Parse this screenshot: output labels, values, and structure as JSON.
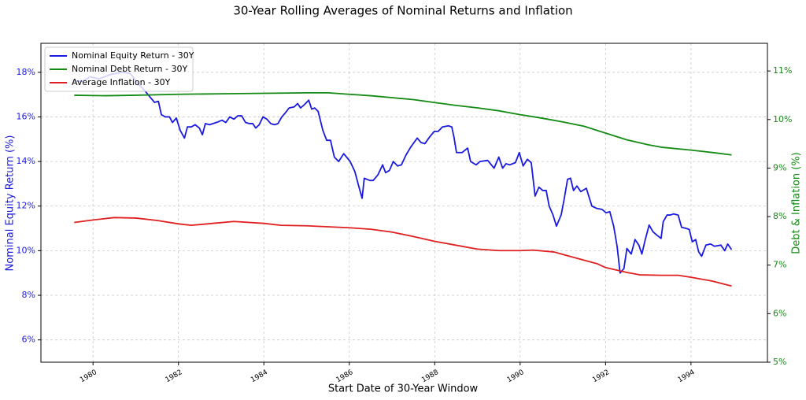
{
  "chart_data": {
    "type": "line",
    "title": "30-Year Rolling Averages of Nominal Returns and Inflation",
    "xlabel": "Start Date of 30-Year Window",
    "ylabel": "Nominal Equity Return (%)",
    "y2label": "Debt & Inflation (%)",
    "xlim": [
      1978.78,
      1995.79
    ],
    "xticks": [
      1980,
      1982,
      1984,
      1986,
      1988,
      1990,
      1992,
      1994
    ],
    "ylim": [
      5,
      19.3
    ],
    "yticks": [
      {
        "value": 6,
        "label": "6%"
      },
      {
        "value": 8,
        "label": "8%"
      },
      {
        "value": 10,
        "label": "10%"
      },
      {
        "value": 12,
        "label": "12%"
      },
      {
        "value": 14,
        "label": "14%"
      },
      {
        "value": 16,
        "label": "16%"
      },
      {
        "value": 18,
        "label": "18%"
      }
    ],
    "y2lim": [
      5,
      11.57
    ],
    "y2ticks": [
      {
        "value": 5,
        "label": "5%"
      },
      {
        "value": 6,
        "label": "6%"
      },
      {
        "value": 7,
        "label": "7%"
      },
      {
        "value": 8,
        "label": "8%"
      },
      {
        "value": 9,
        "label": "9%"
      },
      {
        "value": 10,
        "label": "10%"
      },
      {
        "value": 11,
        "label": "11%"
      }
    ],
    "grid": true,
    "legend": "upper left",
    "series": [
      {
        "name": "Nominal Equity Return - 30Y",
        "color": "#1a1ae0",
        "axis": "y",
        "x": [
          1979.56,
          1979.76,
          1979.94,
          1980.13,
          1980.41,
          1980.68,
          1980.87,
          1981.05,
          1981.2,
          1981.33,
          1981.44,
          1981.53,
          1981.6,
          1981.69,
          1981.79,
          1981.86,
          1981.95,
          1982.04,
          1982.14,
          1982.21,
          1982.3,
          1982.39,
          1982.49,
          1982.56,
          1982.63,
          1982.73,
          1982.89,
          1983.02,
          1983.11,
          1983.2,
          1983.3,
          1983.39,
          1983.48,
          1983.57,
          1983.66,
          1983.74,
          1983.81,
          1983.89,
          1983.98,
          1984.07,
          1984.16,
          1984.25,
          1984.33,
          1984.42,
          1984.51,
          1984.59,
          1984.71,
          1984.79,
          1984.86,
          1984.95,
          1985.05,
          1985.12,
          1985.19,
          1985.27,
          1985.38,
          1985.47,
          1985.56,
          1985.65,
          1985.75,
          1985.87,
          1986.02,
          1986.13,
          1986.22,
          1986.3,
          1986.35,
          1986.48,
          1986.56,
          1986.67,
          1986.78,
          1986.85,
          1986.94,
          1987.03,
          1987.13,
          1987.22,
          1987.33,
          1987.44,
          1987.59,
          1987.68,
          1987.77,
          1987.88,
          1987.99,
          1988.08,
          1988.18,
          1988.32,
          1988.4,
          1988.45,
          1988.51,
          1988.64,
          1988.77,
          1988.84,
          1988.97,
          1989.06,
          1989.24,
          1989.39,
          1989.5,
          1989.59,
          1989.67,
          1989.76,
          1989.89,
          1989.98,
          1990.07,
          1990.17,
          1990.26,
          1990.35,
          1990.44,
          1990.53,
          1990.61,
          1990.68,
          1990.77,
          1990.85,
          1990.96,
          1991.03,
          1991.11,
          1991.18,
          1991.25,
          1991.33,
          1991.42,
          1991.55,
          1991.68,
          1991.79,
          1991.92,
          1992.01,
          1992.1,
          1992.19,
          1992.27,
          1992.34,
          1992.43,
          1992.5,
          1992.6,
          1992.69,
          1992.78,
          1992.85,
          1992.93,
          1993.02,
          1993.11,
          1993.2,
          1993.3,
          1993.35,
          1993.44,
          1993.52,
          1993.59,
          1993.7,
          1993.78,
          1993.89,
          1993.96,
          1994.03,
          1994.11,
          1994.18,
          1994.25,
          1994.35,
          1994.46,
          1994.55,
          1994.7,
          1994.79,
          1994.86,
          1994.95
        ],
        "values": [
          17.6,
          17.6,
          17.8,
          17.7,
          17.9,
          18.0,
          17.95,
          17.5,
          17.2,
          16.9,
          16.65,
          16.7,
          16.1,
          16.0,
          16.0,
          15.75,
          15.95,
          15.4,
          15.05,
          15.55,
          15.55,
          15.65,
          15.5,
          15.2,
          15.7,
          15.65,
          15.75,
          15.85,
          15.75,
          16.0,
          15.9,
          16.05,
          16.05,
          15.75,
          15.7,
          15.7,
          15.5,
          15.65,
          16.0,
          15.9,
          15.7,
          15.65,
          15.7,
          16.0,
          16.2,
          16.4,
          16.45,
          16.6,
          16.4,
          16.55,
          16.75,
          16.35,
          16.4,
          16.25,
          15.4,
          14.95,
          14.95,
          14.2,
          14.0,
          14.35,
          14.0,
          13.55,
          12.9,
          12.35,
          13.25,
          13.15,
          13.15,
          13.4,
          13.85,
          13.5,
          13.6,
          14.0,
          13.8,
          13.85,
          14.3,
          14.65,
          15.05,
          14.85,
          14.8,
          15.1,
          15.35,
          15.35,
          15.55,
          15.6,
          15.55,
          15.1,
          14.4,
          14.4,
          14.6,
          14.0,
          13.85,
          14.0,
          14.05,
          13.7,
          14.2,
          13.7,
          13.9,
          13.85,
          13.95,
          14.4,
          13.8,
          14.1,
          13.95,
          12.45,
          12.85,
          12.7,
          12.7,
          12.0,
          11.6,
          11.1,
          11.6,
          12.3,
          13.2,
          13.25,
          12.7,
          12.9,
          12.65,
          12.8,
          12.0,
          11.9,
          11.85,
          11.7,
          11.75,
          11.1,
          10.2,
          9.0,
          9.2,
          10.1,
          9.85,
          10.5,
          10.25,
          9.85,
          10.5,
          11.15,
          10.85,
          10.7,
          10.55,
          11.3,
          11.6,
          11.6,
          11.65,
          11.6,
          11.05,
          11.0,
          10.95,
          10.4,
          10.5,
          9.95,
          9.75,
          10.25,
          10.3,
          10.2,
          10.25,
          10.0,
          10.3,
          10.05
        ]
      },
      {
        "name": "Nominal Debt Return - 30Y",
        "color": "#138a13",
        "axis": "y2",
        "x": [
          1979.56,
          1980.3,
          1981,
          1982,
          1983,
          1984,
          1985,
          1985.5,
          1986,
          1986.5,
          1987,
          1987.5,
          1988,
          1988.5,
          1989,
          1989.5,
          1990,
          1990.5,
          1991,
          1991.5,
          1992,
          1992.5,
          1993,
          1993.3,
          1994,
          1994.5,
          1994.95
        ],
        "values": [
          10.5,
          10.49,
          10.5,
          10.52,
          10.53,
          10.54,
          10.55,
          10.55,
          10.52,
          10.49,
          10.45,
          10.41,
          10.35,
          10.29,
          10.24,
          10.18,
          10.1,
          10.03,
          9.95,
          9.86,
          9.72,
          9.58,
          9.48,
          9.43,
          9.37,
          9.32,
          9.27
        ]
      },
      {
        "name": "Average Inflation - 30Y",
        "color": "#e02020",
        "axis": "y2",
        "x": [
          1979.56,
          1980,
          1980.5,
          1981,
          1981.5,
          1982,
          1982.3,
          1982.8,
          1983.3,
          1984,
          1984.4,
          1985,
          1985.5,
          1986,
          1986.5,
          1987,
          1987.5,
          1988,
          1988.5,
          1989,
          1989.5,
          1990,
          1990.3,
          1990.8,
          1991,
          1991.5,
          1991.8,
          1992,
          1992.5,
          1992.8,
          1993.3,
          1993.7,
          1994,
          1994.5,
          1994.95
        ],
        "values": [
          7.88,
          7.93,
          7.98,
          7.97,
          7.92,
          7.85,
          7.82,
          7.86,
          7.9,
          7.86,
          7.82,
          7.81,
          7.79,
          7.77,
          7.74,
          7.68,
          7.59,
          7.49,
          7.41,
          7.33,
          7.3,
          7.3,
          7.31,
          7.27,
          7.22,
          7.1,
          7.03,
          6.95,
          6.85,
          6.8,
          6.79,
          6.79,
          6.75,
          6.67,
          6.57
        ]
      }
    ]
  }
}
